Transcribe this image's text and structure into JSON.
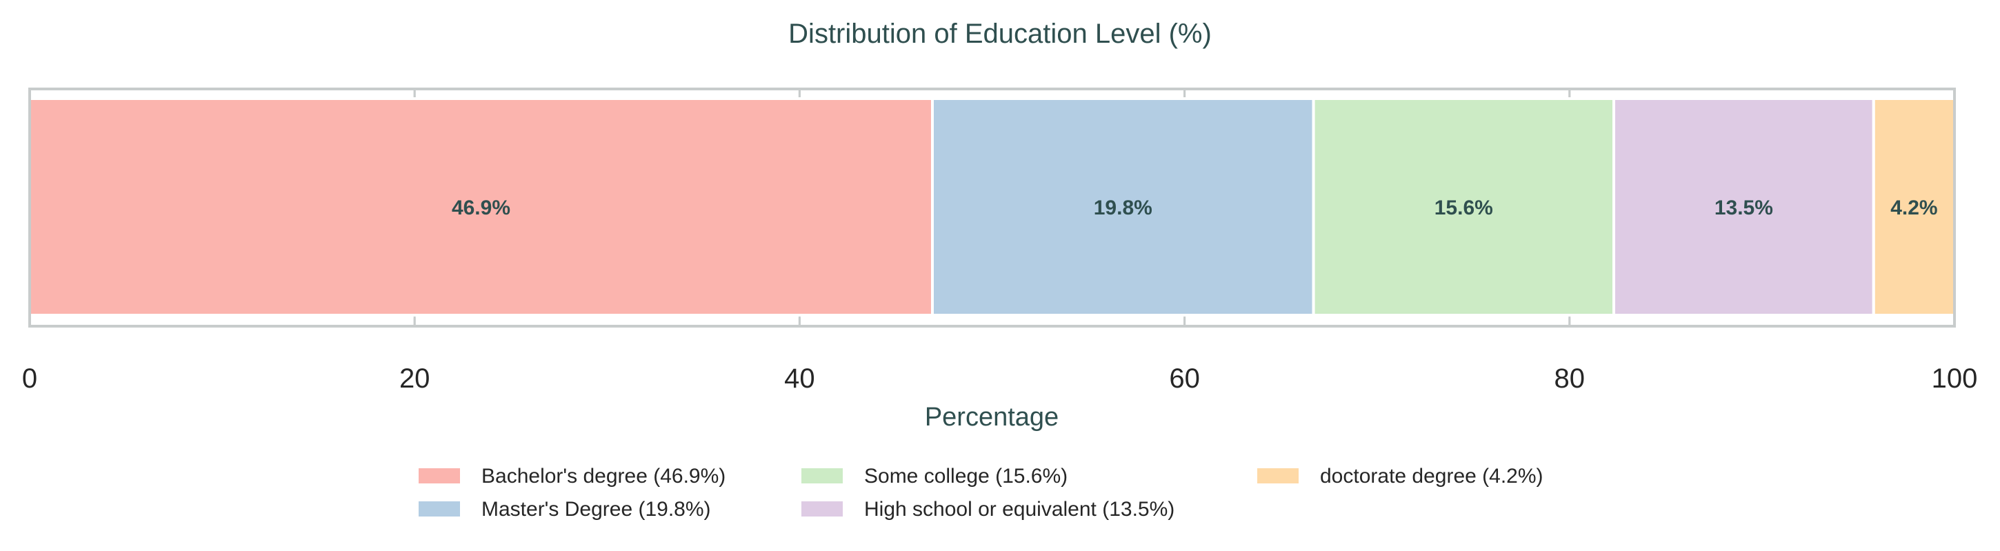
{
  "chart_data": {
    "type": "bar",
    "orientation": "horizontal",
    "stacked": true,
    "title": "Distribution of Education Level (%)",
    "xlabel": "Percentage",
    "ylabel": "",
    "xlim": [
      0,
      100
    ],
    "x_ticks": [
      "0",
      "20",
      "40",
      "60",
      "80",
      "100"
    ],
    "grid": true,
    "legend_position": "bottom-center",
    "series": [
      {
        "name": "Bachelor's degree (46.9%)",
        "value": 46.9,
        "label": "46.9%",
        "color": "#fbb4ae"
      },
      {
        "name": "Master's Degree (19.8%)",
        "value": 19.8,
        "label": "19.8%",
        "color": "#b3cde3"
      },
      {
        "name": "Some college (15.6%)",
        "value": 15.6,
        "label": "15.6%",
        "color": "#ccebc5"
      },
      {
        "name": "High school or equivalent (13.5%)",
        "value": 13.5,
        "label": "13.5%",
        "color": "#decbe4"
      },
      {
        "name": "doctorate degree (4.2%)",
        "value": 4.2,
        "label": "4.2%",
        "color": "#fed9a6"
      }
    ]
  }
}
